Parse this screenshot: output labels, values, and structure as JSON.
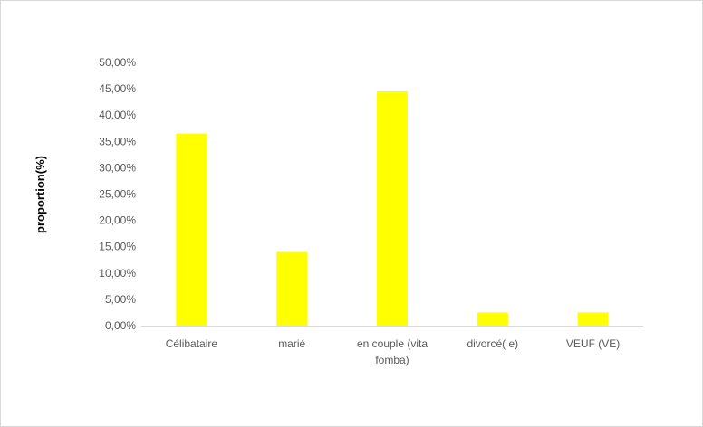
{
  "chart_data": {
    "type": "bar",
    "title": "",
    "xlabel": "",
    "ylabel": "proportion(%)",
    "categories": [
      [
        "Célibataire"
      ],
      [
        "marié"
      ],
      [
        "en couple (vita",
        "fomba)"
      ],
      [
        "divorcé( e)"
      ],
      [
        "VEUF (VE)"
      ]
    ],
    "values": [
      36.5,
      14.0,
      44.5,
      2.5,
      2.5
    ],
    "ylim": [
      0,
      50
    ],
    "yticks": [
      0,
      5,
      10,
      15,
      20,
      25,
      30,
      35,
      40,
      45,
      50
    ],
    "ytick_labels": [
      "0,00%",
      "5,00%",
      "10,00%",
      "15,00%",
      "20,00%",
      "25,00%",
      "30,00%",
      "35,00%",
      "40,00%",
      "45,00%",
      "50,00%"
    ],
    "grid": false,
    "legend": "none",
    "colors": {
      "bar": "#ffff00",
      "axis": "#d9d9d9",
      "tick_text": "#595959",
      "axis_title": "#000000"
    }
  }
}
